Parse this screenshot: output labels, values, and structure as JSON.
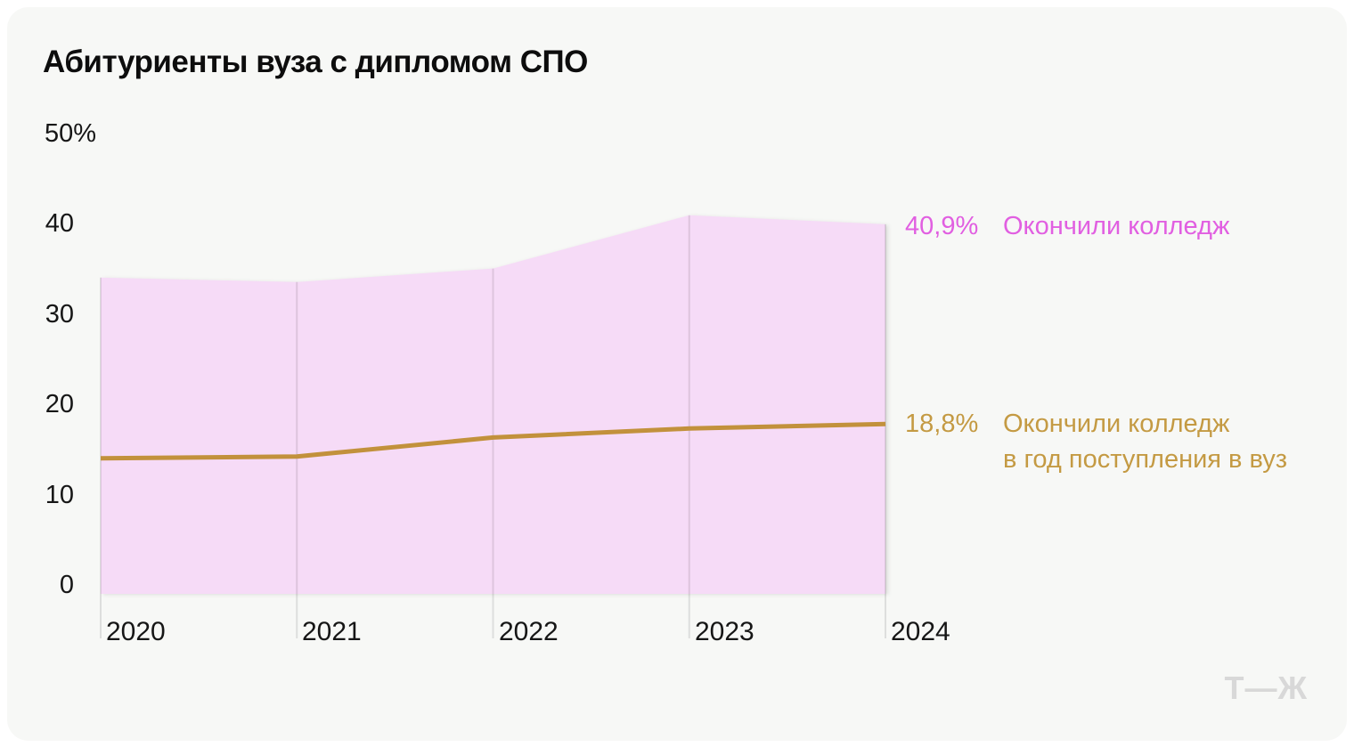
{
  "title": "Абитуриенты вуза с дипломом СПО",
  "chart_data": {
    "type": "area",
    "title": "Абитуриенты вуза с дипломом СПО",
    "x": [
      "2020",
      "2021",
      "2022",
      "2023",
      "2024"
    ],
    "xlabel": "",
    "ylabel": "",
    "ylim": [
      0,
      50
    ],
    "yticks": [
      0,
      10,
      20,
      30,
      40,
      50
    ],
    "ytick_labels": [
      "0",
      "10",
      "20",
      "30",
      "40",
      "50%"
    ],
    "grid": "vertical-only",
    "legend_position": "right-of-last-point",
    "series": [
      {
        "name": "Окончили колледж",
        "type": "area",
        "values": [
          35.0,
          34.5,
          36.0,
          41.9,
          40.9
        ],
        "end_label": "40,9%",
        "fill_color": "#f6dbf7",
        "label_color": "#e15fe1",
        "name_lines": [
          "Окончили колледж"
        ]
      },
      {
        "name": "Окончили колледж в год поступления в вуз",
        "type": "line",
        "values": [
          15.0,
          15.2,
          17.3,
          18.3,
          18.8
        ],
        "end_label": "18,8%",
        "line_color": "#c2913c",
        "label_color": "#c49a43",
        "name_lines": [
          "Окончили колледж",
          "в год поступления в вуз"
        ]
      }
    ]
  },
  "colors": {
    "card_bg": "#f7f8f6",
    "text": "#161616",
    "gridline": "rgba(0,0,0,0.10)",
    "logo": "#d8d8d8"
  },
  "logo": "Т—Ж"
}
